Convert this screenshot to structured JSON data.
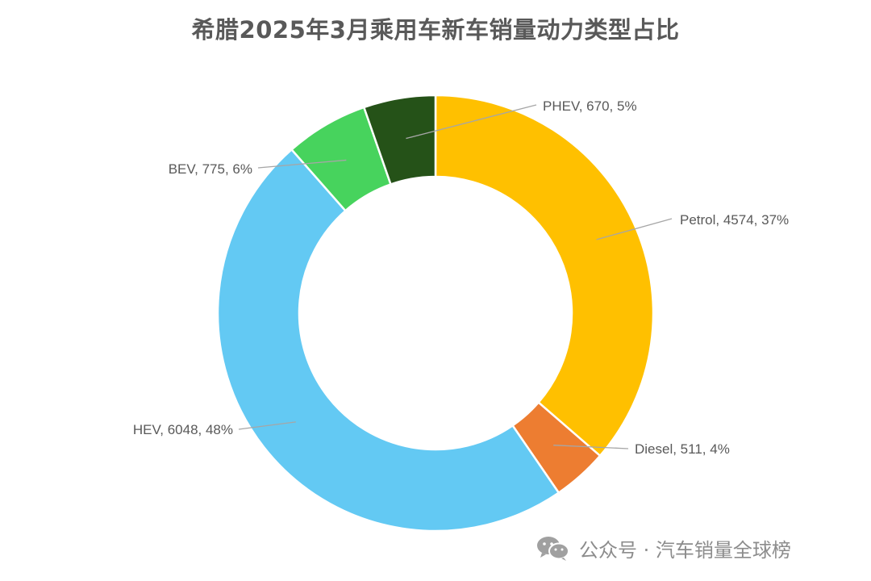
{
  "chart_data": {
    "type": "pie",
    "style": "donut",
    "title": "希腊2025年3月乘用车新车销量动力类型占比",
    "start_category": "Petrol",
    "direction": "clockwise",
    "slices": [
      {
        "name": "Petrol",
        "value": 4574,
        "percent": "37%",
        "label": "Petrol, 4574, 37%",
        "color": "#FFC000"
      },
      {
        "name": "Diesel",
        "value": 511,
        "percent": "4%",
        "label": "Diesel, 511, 4%",
        "color": "#ED7D31"
      },
      {
        "name": "HEV",
        "value": 6048,
        "percent": "48%",
        "label": "HEV, 6048, 48%",
        "color": "#63C9F3"
      },
      {
        "name": "BEV",
        "value": 775,
        "percent": "6%",
        "label": "BEV, 775, 6%",
        "color": "#47D35D"
      },
      {
        "name": "PHEV",
        "value": 670,
        "percent": "5%",
        "label": "PHEV, 670, 5%",
        "color": "#255218"
      }
    ]
  },
  "watermark": {
    "icon": "wechat-icon",
    "text": "公众号 · 汽车销量全球榜"
  }
}
